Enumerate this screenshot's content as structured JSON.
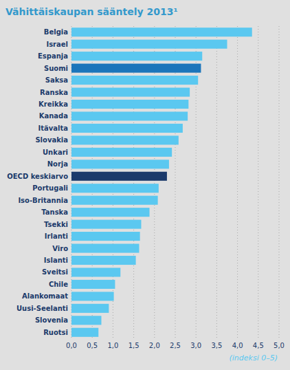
{
  "chart_data": {
    "type": "bar",
    "orientation": "horizontal",
    "title": "Vähittäiskaupan sääntely 2013¹",
    "xlabel": "(indeksi 0–5)",
    "categories": [
      "Belgia",
      "Israel",
      "Espanja",
      "Suomi",
      "Saksa",
      "Ranska",
      "Kreikka",
      "Kanada",
      "Itävalta",
      "Slovakia",
      "Unkari",
      "Norja",
      "OECD keskiarvo",
      "Portugali",
      "Iso-Britannia",
      "Tanska",
      "Tsekki",
      "Irlanti",
      "Viro",
      "Islanti",
      "Sveitsi",
      "Chile",
      "Alankomaat",
      "Uusi-Seelanti",
      "Slovenia",
      "Ruotsi"
    ],
    "values": [
      4.35,
      3.75,
      3.15,
      3.12,
      3.05,
      2.85,
      2.82,
      2.8,
      2.68,
      2.58,
      2.42,
      2.35,
      2.3,
      2.1,
      2.08,
      1.88,
      1.68,
      1.65,
      1.63,
      1.55,
      1.18,
      1.05,
      1.02,
      0.9,
      0.72,
      0.65
    ],
    "colors": [
      "#5BC8F0",
      "#5BC8F0",
      "#5BC8F0",
      "#1B75BB",
      "#5BC8F0",
      "#5BC8F0",
      "#5BC8F0",
      "#5BC8F0",
      "#5BC8F0",
      "#5BC8F0",
      "#5BC8F0",
      "#5BC8F0",
      "#1B3A6B",
      "#5BC8F0",
      "#5BC8F0",
      "#5BC8F0",
      "#5BC8F0",
      "#5BC8F0",
      "#5BC8F0",
      "#5BC8F0",
      "#5BC8F0",
      "#5BC8F0",
      "#5BC8F0",
      "#5BC8F0",
      "#5BC8F0",
      "#5BC8F0"
    ],
    "xlim": [
      0,
      5.0
    ],
    "xticks": [
      {
        "value": 0.0,
        "label": "0,0"
      },
      {
        "value": 0.5,
        "label": "0,5"
      },
      {
        "value": 1.0,
        "label": "1,0"
      },
      {
        "value": 1.5,
        "label": "1,5"
      },
      {
        "value": 2.0,
        "label": "2,0"
      },
      {
        "value": 2.5,
        "label": "2,5"
      },
      {
        "value": 3.0,
        "label": "3,0"
      },
      {
        "value": 3.5,
        "label": "3,5"
      },
      {
        "value": 4.0,
        "label": "4,0"
      },
      {
        "value": 4.5,
        "label": "4,5"
      },
      {
        "value": 5.0,
        "label": "5,0"
      }
    ],
    "grid": true
  }
}
